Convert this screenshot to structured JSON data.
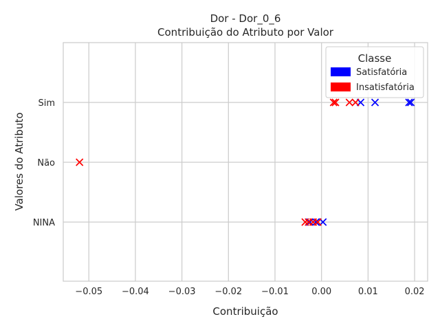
{
  "chart_data": {
    "type": "scatter",
    "title": "Dor - Dor_0_6",
    "subtitle": "Contribuição do Atributo por Valor",
    "xlabel": "Contribuição",
    "ylabel": "Valores do Atributo",
    "xlim": [
      -0.0555,
      0.0228
    ],
    "xticks": [
      -0.05,
      -0.04,
      -0.03,
      -0.02,
      -0.01,
      0.0,
      0.01,
      0.02
    ],
    "xtick_labels": [
      "−0.05",
      "−0.04",
      "−0.03",
      "−0.02",
      "−0.01",
      "0.00",
      "0.01",
      "0.02"
    ],
    "categories": [
      "NINA",
      "Não",
      "Sim"
    ],
    "grid": true,
    "marker": "x",
    "legend": {
      "title": "Classe",
      "placement": "top-right",
      "entries": [
        {
          "label": "Satisfatória",
          "color": "#0000ff"
        },
        {
          "label": "Insatisfatória",
          "color": "#ff0000"
        }
      ]
    },
    "series": [
      {
        "name": "Satisfatória",
        "color": "#0000ff",
        "points": [
          {
            "x": 0.0084,
            "y": "Sim"
          },
          {
            "x": 0.0115,
            "y": "Sim"
          },
          {
            "x": 0.0188,
            "y": "Sim"
          },
          {
            "x": 0.0192,
            "y": "Sim"
          },
          {
            "x": -0.0025,
            "y": "NINA"
          },
          {
            "x": -0.0012,
            "y": "NINA"
          },
          {
            "x": 0.0003,
            "y": "NINA"
          }
        ]
      },
      {
        "name": "Insatisfatória",
        "color": "#ff0000",
        "points": [
          {
            "x": 0.0026,
            "y": "Sim"
          },
          {
            "x": 0.003,
            "y": "Sim"
          },
          {
            "x": 0.006,
            "y": "Sim"
          },
          {
            "x": 0.0073,
            "y": "Sim"
          },
          {
            "x": -0.052,
            "y": "Não"
          },
          {
            "x": -0.0035,
            "y": "NINA"
          },
          {
            "x": -0.0028,
            "y": "NINA"
          },
          {
            "x": -0.0018,
            "y": "NINA"
          },
          {
            "x": -0.0008,
            "y": "NINA"
          }
        ]
      }
    ]
  }
}
